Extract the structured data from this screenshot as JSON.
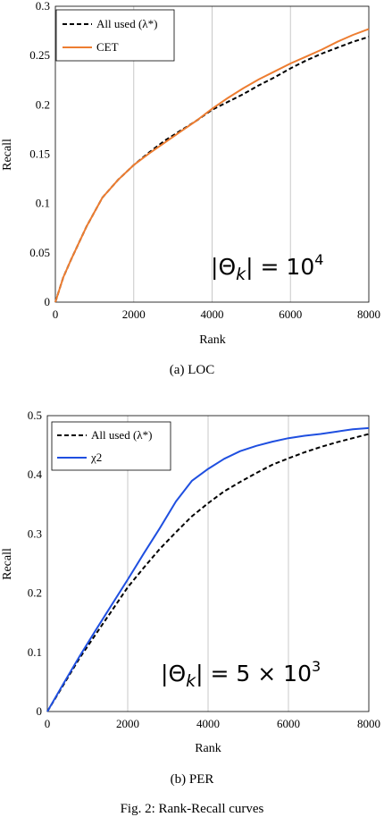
{
  "figure": {
    "caption_a": "(a)  LOC",
    "caption_b": "(b)  PER",
    "caption_fig": "Fig. 2: Rank-Recall curves"
  },
  "chart_data": [
    {
      "type": "line",
      "id": "loc",
      "xlabel": "Rank",
      "ylabel": "Recall",
      "xlim": [
        0,
        8000
      ],
      "ylim": [
        0,
        0.3
      ],
      "xticks": [
        0,
        2000,
        4000,
        6000,
        8000
      ],
      "yticks": [
        0,
        0.05,
        0.1,
        0.15,
        0.2,
        0.25,
        0.3
      ],
      "ytick_labels": [
        "0",
        "0.05",
        "0.1",
        "0.15",
        "0.2",
        "0.25",
        "0.3"
      ],
      "grid": "vertical",
      "legend": "top-left",
      "annotation": "|Θk| = 10^4",
      "annotation_parts": {
        "bar_left": "|",
        "theta": "Θ",
        "sub": "k",
        "bar_right": "|",
        "rhs": " = 10",
        "sup": "4"
      },
      "series": [
        {
          "name": "All used (λ*)",
          "style": "dashed",
          "color": "#000000",
          "x": [
            0,
            200,
            400,
            800,
            1200,
            1600,
            2000,
            2400,
            2800,
            3200,
            3600,
            4000,
            4400,
            4800,
            5200,
            5600,
            6000,
            6400,
            6800,
            7200,
            7600,
            8000
          ],
          "y": [
            0,
            0.025,
            0.043,
            0.077,
            0.106,
            0.124,
            0.139,
            0.152,
            0.164,
            0.174,
            0.184,
            0.195,
            0.203,
            0.211,
            0.22,
            0.228,
            0.237,
            0.245,
            0.252,
            0.258,
            0.264,
            0.269
          ]
        },
        {
          "name": "CET",
          "style": "solid",
          "color": "#ED7D31",
          "x": [
            0,
            200,
            400,
            800,
            1200,
            1600,
            2000,
            2400,
            2800,
            3200,
            3600,
            4000,
            4400,
            4800,
            5200,
            5600,
            6000,
            6400,
            6800,
            7200,
            7600,
            8000
          ],
          "y": [
            0,
            0.025,
            0.043,
            0.077,
            0.106,
            0.124,
            0.139,
            0.151,
            0.162,
            0.173,
            0.184,
            0.196,
            0.207,
            0.217,
            0.226,
            0.234,
            0.242,
            0.249,
            0.256,
            0.264,
            0.271,
            0.277
          ]
        }
      ]
    },
    {
      "type": "line",
      "id": "per",
      "xlabel": "Rank",
      "ylabel": "Recall",
      "xlim": [
        0,
        8000
      ],
      "ylim": [
        0,
        0.5
      ],
      "xticks": [
        0,
        2000,
        4000,
        6000,
        8000
      ],
      "yticks": [
        0,
        0.1,
        0.2,
        0.3,
        0.4,
        0.5
      ],
      "ytick_labels": [
        "0",
        "0.1",
        "0.2",
        "0.3",
        "0.4",
        "0.5"
      ],
      "grid": "vertical",
      "legend": "top-left",
      "annotation": "|Θk| = 5 × 10^3",
      "annotation_parts": {
        "bar_left": "|",
        "theta": "Θ",
        "sub": "k",
        "bar_right": "|",
        "rhs": " = 5 × 10",
        "sup": "3"
      },
      "series": [
        {
          "name": "All used (λ*)",
          "style": "dashed",
          "color": "#000000",
          "x": [
            0,
            400,
            800,
            1200,
            1600,
            2000,
            2400,
            2800,
            3200,
            3600,
            4000,
            4400,
            4800,
            5200,
            5600,
            6000,
            6400,
            6800,
            7200,
            7600,
            8000
          ],
          "y": [
            0,
            0.045,
            0.09,
            0.13,
            0.17,
            0.21,
            0.243,
            0.275,
            0.303,
            0.33,
            0.352,
            0.372,
            0.388,
            0.403,
            0.417,
            0.428,
            0.438,
            0.447,
            0.455,
            0.462,
            0.469
          ]
        },
        {
          "name": "χ2",
          "style": "solid",
          "color": "#1F4FE0",
          "x": [
            0,
            400,
            800,
            1200,
            1600,
            2000,
            2400,
            2800,
            3200,
            3600,
            4000,
            4400,
            4800,
            5200,
            5600,
            6000,
            6400,
            6800,
            7200,
            7600,
            8000
          ],
          "y": [
            0,
            0.047,
            0.093,
            0.137,
            0.18,
            0.223,
            0.267,
            0.31,
            0.355,
            0.39,
            0.41,
            0.427,
            0.44,
            0.449,
            0.456,
            0.462,
            0.466,
            0.469,
            0.473,
            0.477,
            0.479
          ]
        }
      ]
    }
  ]
}
